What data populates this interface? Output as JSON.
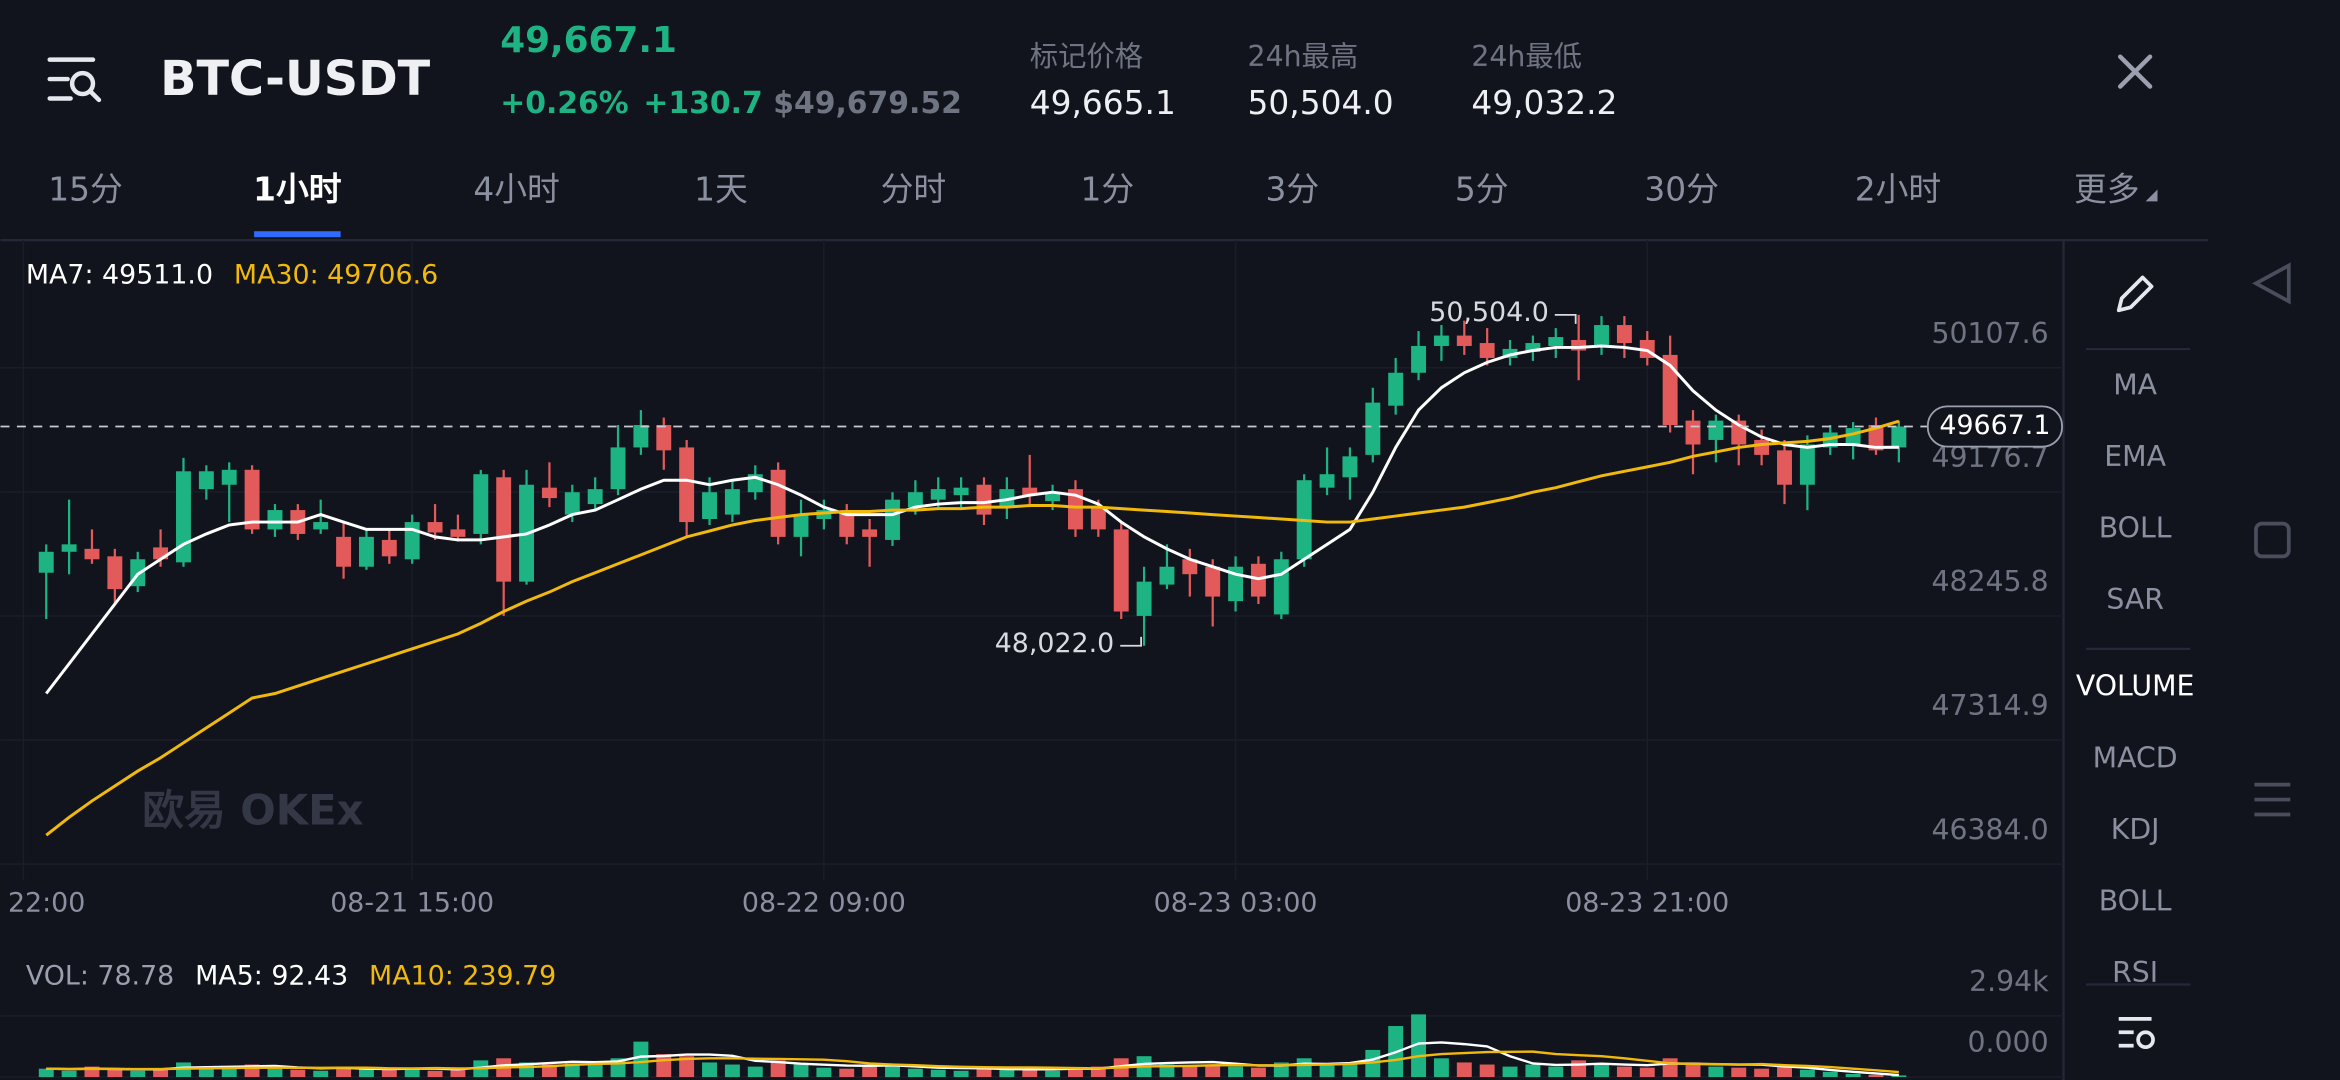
{
  "header": {
    "symbol": "BTC-USDT",
    "last": "49,667.1",
    "change_pct": "+0.26%",
    "change": "+130.7",
    "usd": "$49,679.52",
    "stats": [
      {
        "label": "标记价格",
        "value": "49,665.1"
      },
      {
        "label": "24h最高",
        "value": "50,504.0"
      },
      {
        "label": "24h最低",
        "value": "49,032.2"
      }
    ]
  },
  "tabs": [
    "15分",
    "1小时",
    "4小时",
    "1天",
    "分时",
    "1分",
    "3分",
    "5分",
    "30分",
    "2小时",
    "更多"
  ],
  "active_tab": 1,
  "side_menu": [
    "MA",
    "EMA",
    "BOLL",
    "SAR",
    "VOLUME",
    "MACD",
    "KDJ",
    "BOLL",
    "RSI"
  ],
  "active_side": 4,
  "watermark": "欧易 OKEx",
  "chart_data": [
    {
      "type": "candlestick",
      "up_color": "#1db383",
      "down_color": "#e25a5a",
      "open": [
        48570,
        48727,
        48749,
        48693,
        48469,
        48760,
        48648,
        49197,
        49230,
        49342,
        48895,
        49040,
        48895,
        48839,
        48615,
        48816,
        48671,
        48950,
        48895,
        48861,
        49286,
        48503,
        49208,
        49006,
        49085,
        49197,
        49510,
        49678,
        49510,
        48973,
        49006,
        49174,
        49342,
        48839,
        48973,
        49040,
        48895,
        48816,
        49062,
        49118,
        49152,
        49230,
        49062,
        49208,
        49107,
        49197,
        49062,
        48895,
        48246,
        48481,
        48671,
        48615,
        48357,
        48637,
        48257,
        48671,
        49208,
        49286,
        49454,
        49823,
        50070,
        50271,
        50349,
        50293,
        50181,
        50226,
        50271,
        50316,
        50271,
        50428,
        50316,
        50204,
        49711,
        49566,
        49711,
        49566,
        49488,
        49230,
        49510,
        49532,
        49678,
        49510
      ],
      "high": [
        48783,
        49118,
        48895,
        48749,
        48727,
        48895,
        49432,
        49376,
        49398,
        49376,
        49085,
        49085,
        49118,
        48950,
        48895,
        48895,
        49006,
        49085,
        49006,
        49342,
        49342,
        49342,
        49398,
        49230,
        49286,
        49678,
        49790,
        49734,
        49566,
        49286,
        49264,
        49376,
        49398,
        49118,
        49118,
        49085,
        48973,
        49174,
        49264,
        49286,
        49286,
        49286,
        49286,
        49454,
        49230,
        49264,
        49118,
        48950,
        48615,
        48783,
        48749,
        48671,
        48693,
        48693,
        48727,
        49309,
        49510,
        49510,
        49958,
        50181,
        50383,
        50428,
        50461,
        50405,
        50316,
        50349,
        50405,
        50504,
        50495,
        50495,
        50383,
        50349,
        49790,
        49756,
        49756,
        49644,
        49566,
        49600,
        49678,
        49700,
        49734,
        49711
      ],
      "low": [
        48223,
        48559,
        48637,
        48335,
        48425,
        48615,
        48615,
        49118,
        48950,
        48861,
        48839,
        48816,
        48861,
        48525,
        48592,
        48637,
        48637,
        48816,
        48805,
        48783,
        48246,
        48481,
        49062,
        48950,
        49040,
        49152,
        49454,
        49342,
        48839,
        48928,
        48950,
        49118,
        48783,
        48693,
        48895,
        48783,
        48615,
        48771,
        49006,
        49062,
        49062,
        48928,
        48973,
        49062,
        49040,
        48839,
        48839,
        48223,
        48022,
        48447,
        48391,
        48167,
        48279,
        48335,
        48223,
        48615,
        49152,
        49118,
        49398,
        49756,
        50014,
        50159,
        50204,
        50125,
        50125,
        50159,
        50181,
        50014,
        50204,
        50181,
        50125,
        49622,
        49309,
        49398,
        49376,
        49376,
        49085,
        49040,
        49454,
        49420,
        49454,
        49398
      ],
      "close": [
        48727,
        48783,
        48671,
        48447,
        48671,
        48671,
        49331,
        49331,
        49342,
        48895,
        49040,
        48861,
        48950,
        48615,
        48839,
        48693,
        48950,
        48872,
        48839,
        49309,
        48503,
        49230,
        49130,
        49174,
        49197,
        49510,
        49678,
        49488,
        48950,
        49174,
        49197,
        49309,
        48839,
        49006,
        49040,
        48839,
        48839,
        49118,
        49174,
        49197,
        49208,
        49006,
        49197,
        49152,
        49174,
        48895,
        48895,
        48279,
        48503,
        48615,
        48559,
        48391,
        48615,
        48391,
        48671,
        49264,
        49309,
        49443,
        49846,
        50070,
        50271,
        50349,
        50271,
        50181,
        50249,
        50293,
        50338,
        50237,
        50428,
        50293,
        50181,
        49678,
        49532,
        49711,
        49532,
        49454,
        49230,
        49532,
        49622,
        49655,
        49488,
        49667.1
      ],
      "series": [
        {
          "label": "MA7: 49511.0",
          "color": "#ffffff",
          "values": [
            47664,
            47887,
            48111,
            48335,
            48559,
            48671,
            48783,
            48861,
            48928,
            48950,
            48950,
            48950,
            49006,
            48950,
            48895,
            48895,
            48895,
            48839,
            48816,
            48816,
            48839,
            48861,
            48928,
            49006,
            49040,
            49118,
            49197,
            49264,
            49264,
            49230,
            49264,
            49286,
            49230,
            49152,
            49062,
            49006,
            49006,
            49006,
            49062,
            49085,
            49096,
            49096,
            49118,
            49152,
            49174,
            49152,
            49085,
            48950,
            48839,
            48749,
            48671,
            48615,
            48559,
            48525,
            48559,
            48671,
            48783,
            48895,
            49174,
            49510,
            49790,
            49958,
            50070,
            50148,
            50204,
            50237,
            50260,
            50260,
            50271,
            50260,
            50237,
            50125,
            49935,
            49790,
            49678,
            49588,
            49532,
            49510,
            49532,
            49532,
            49510,
            49511.0
          ]
        },
        {
          "label": "MA30: 49706.6",
          "color": "#f0b90b",
          "values": [
            46601,
            46735,
            46858,
            46970,
            47082,
            47182,
            47294,
            47406,
            47518,
            47630,
            47664,
            47720,
            47776,
            47831,
            47887,
            47943,
            47999,
            48055,
            48111,
            48190,
            48279,
            48357,
            48425,
            48503,
            48570,
            48637,
            48704,
            48771,
            48839,
            48883,
            48928,
            48962,
            48984,
            49006,
            49018,
            49029,
            49029,
            49040,
            49040,
            49051,
            49051,
            49062,
            49062,
            49074,
            49074,
            49062,
            49062,
            49051,
            49040,
            49029,
            49018,
            49006,
            48995,
            48984,
            48973,
            48962,
            48950,
            48950,
            48973,
            48995,
            49018,
            49040,
            49062,
            49096,
            49130,
            49174,
            49208,
            49253,
            49297,
            49331,
            49364,
            49398,
            49443,
            49476,
            49510,
            49532,
            49544,
            49555,
            49577,
            49611,
            49655,
            49706.6
          ]
        }
      ],
      "last_price": {
        "value": 49667.1,
        "label": "49667.1"
      },
      "annotations": [
        {
          "label": "50,504.0",
          "value": 50504
        },
        {
          "label": "48,022.0",
          "value": 48022
        }
      ],
      "xlim": [
        -2,
        88.2
      ],
      "xticks": [
        {
          "value": -1,
          "label": "22:00"
        },
        {
          "value": 16,
          "label": "08-21 15:00"
        },
        {
          "value": 34,
          "label": "08-22 09:00"
        },
        {
          "value": 52,
          "label": "08-23 03:00"
        },
        {
          "value": 70,
          "label": "08-23 21:00"
        }
      ],
      "ylim": [
        46320,
        51020
      ],
      "yticks": [
        50107.6,
        49176.7,
        48245.8,
        47314.9,
        {
          "value": 46384,
          "label": "46384.0"
        }
      ],
      "grid": true
    },
    {
      "type": "bar",
      "label": "VOL: 78.78",
      "values": [
        400,
        300,
        500,
        350,
        300,
        400,
        700,
        500,
        450,
        600,
        400,
        350,
        300,
        500,
        400,
        350,
        450,
        300,
        350,
        800,
        900,
        700,
        600,
        650,
        700,
        900,
        1700,
        1100,
        1000,
        700,
        600,
        500,
        800,
        600,
        450,
        400,
        500,
        600,
        400,
        350,
        300,
        450,
        400,
        350,
        300,
        450,
        500,
        900,
        1000,
        600,
        500,
        600,
        500,
        450,
        700,
        900,
        600,
        700,
        1300,
        2450,
        3010,
        900,
        700,
        600,
        500,
        600,
        500,
        800,
        600,
        500,
        450,
        900,
        700,
        500,
        450,
        400,
        500,
        350,
        250,
        150,
        100,
        78.78
      ],
      "series": [
        {
          "label": "MA5: 92.43",
          "color": "#ffffff",
          "values": [
            400,
            380,
            400,
            390,
            370,
            370,
            450,
            470,
            490,
            510,
            530,
            460,
            420,
            440,
            400,
            380,
            400,
            400,
            370,
            450,
            560,
            610,
            670,
            730,
            710,
            750,
            980,
            1010,
            1080,
            1080,
            1020,
            780,
            720,
            640,
            590,
            550,
            540,
            560,
            510,
            450,
            430,
            420,
            380,
            370,
            370,
            400,
            400,
            520,
            630,
            670,
            700,
            720,
            640,
            550,
            550,
            640,
            630,
            670,
            840,
            1190,
            1610,
            1660,
            1580,
            1470,
            1000,
            650,
            580,
            600,
            640,
            600,
            570,
            650,
            640,
            610,
            600,
            590,
            510,
            450,
            340,
            250,
            170,
            92.43
          ]
        },
        {
          "label": "MA10: 239.79",
          "color": "#f0b90b",
          "values": [
            400,
            380,
            390,
            390,
            380,
            380,
            400,
            420,
            430,
            440,
            450,
            440,
            440,
            450,
            450,
            420,
            410,
            430,
            410,
            420,
            460,
            480,
            520,
            580,
            630,
            650,
            720,
            810,
            870,
            900,
            900,
            880,
            870,
            850,
            830,
            760,
            650,
            600,
            570,
            520,
            490,
            470,
            460,
            460,
            450,
            430,
            420,
            460,
            510,
            520,
            530,
            560,
            570,
            560,
            560,
            580,
            600,
            630,
            700,
            820,
            1000,
            1100,
            1150,
            1200,
            1210,
            1220,
            1100,
            1050,
            1000,
            900,
            780,
            650,
            630,
            620,
            600,
            620,
            570,
            530,
            480,
            400,
            320,
            239.79
          ]
        }
      ],
      "xlim": [
        -2,
        88.2
      ],
      "ylim": [
        0,
        3870
      ],
      "yticks": [
        {
          "value": 2940,
          "label": "2.94k"
        },
        {
          "value": 0,
          "label": "0.000"
        }
      ]
    }
  ]
}
